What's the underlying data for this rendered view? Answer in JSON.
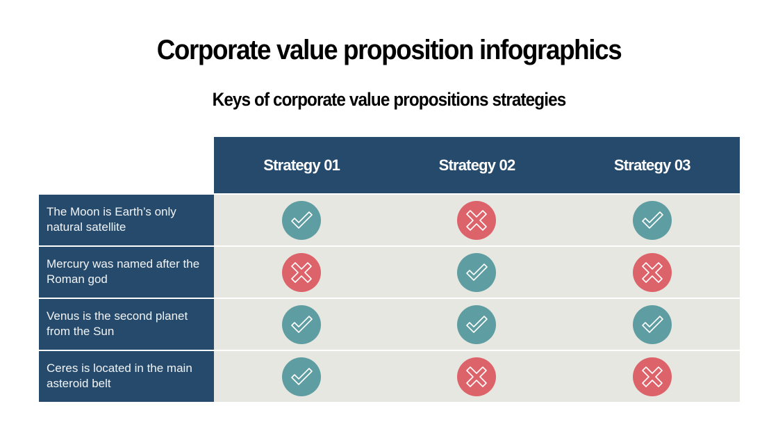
{
  "title": "Corporate value proposition infographics",
  "subtitle": "Keys of corporate value propositions strategies",
  "colors": {
    "header_bg": "#264a6b",
    "row_bg": "#e5e7e0",
    "check": "#5e9da1",
    "cross": "#dd636a"
  },
  "table": {
    "columns": [
      "Strategy 01",
      "Strategy 02",
      "Strategy 03"
    ],
    "rows": [
      {
        "label": "The Moon is Earth’s only natural satellite",
        "values": [
          "check",
          "cross",
          "check"
        ]
      },
      {
        "label": "Mercury was named after the Roman god",
        "values": [
          "cross",
          "check",
          "cross"
        ]
      },
      {
        "label": "Venus is the second planet from the Sun",
        "values": [
          "check",
          "check",
          "check"
        ]
      },
      {
        "label": "Ceres is located in the main asteroid belt",
        "values": [
          "check",
          "cross",
          "cross"
        ]
      }
    ]
  }
}
